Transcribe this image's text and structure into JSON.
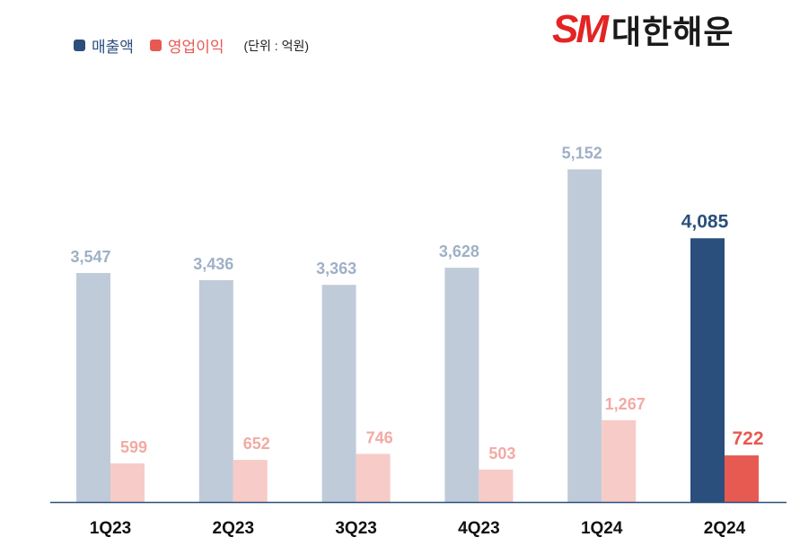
{
  "legend": {
    "revenue_label": "매출액",
    "op_label": "영업이익",
    "unit": "(단위 : 억원)"
  },
  "logo": {
    "brand": "SM",
    "name": "대한해운"
  },
  "colors": {
    "revenue": "#c0cbd9",
    "revenue_highlight": "#2b4f7c",
    "op": "#f7cbc8",
    "op_highlight": "#e65a52",
    "revenue_label": "#9fb0c6",
    "op_label": "#f2aaa4",
    "axis": "#2b4f7c",
    "legend_revenue_text": "#2b4f7c",
    "legend_op_text": "#e65a52"
  },
  "chart_data": {
    "type": "bar",
    "categories": [
      "1Q23",
      "2Q23",
      "3Q23",
      "4Q23",
      "1Q24",
      "2Q24"
    ],
    "series": [
      {
        "name": "매출액",
        "values": [
          3547,
          3436,
          3363,
          3628,
          5152,
          4085
        ],
        "labels": [
          "3,547",
          "3,436",
          "3,363",
          "3,628",
          "5,152",
          "4,085"
        ]
      },
      {
        "name": "영업이익",
        "values": [
          599,
          652,
          746,
          503,
          1267,
          722
        ],
        "labels": [
          "599",
          "652",
          "746",
          "503",
          "1,267",
          "722"
        ]
      }
    ],
    "highlight_index": 5,
    "ylim": [
      0,
      5500
    ],
    "grid": false,
    "legend_position": "top-left"
  }
}
